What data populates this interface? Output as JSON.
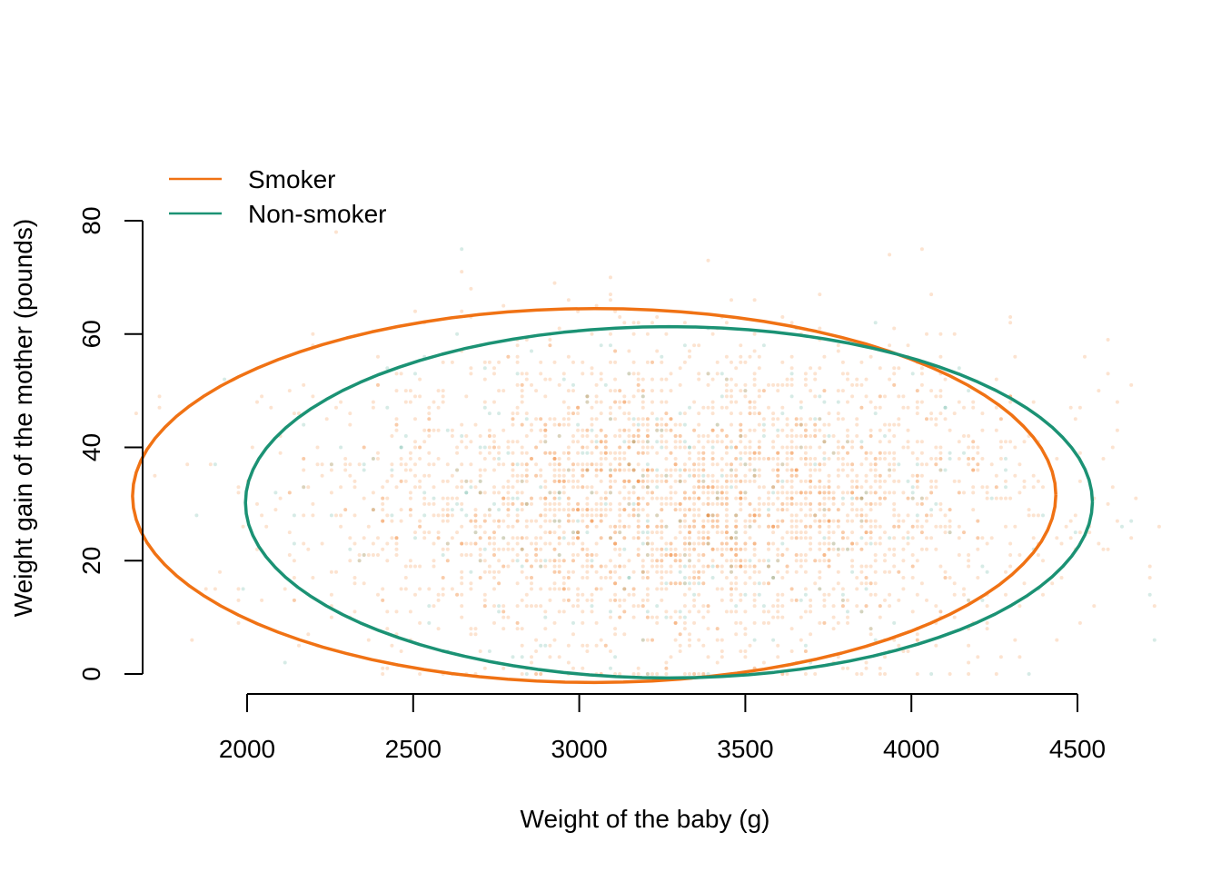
{
  "chart_data": {
    "type": "scatter",
    "title": "",
    "xlabel": "Weight of the baby (g)",
    "ylabel": "Weight gain of the mother (pounds)",
    "xlim": [
      1660,
      4750
    ],
    "ylim": [
      -3.5,
      93
    ],
    "x_ticks": [
      2000,
      2500,
      3000,
      3500,
      4000,
      4500
    ],
    "y_ticks": [
      0,
      20,
      40,
      60,
      80
    ],
    "x_tick_labels": [
      "2000",
      "2500",
      "3000",
      "3500",
      "4000",
      "4500"
    ],
    "y_tick_labels": [
      "0",
      "20",
      "40",
      "60",
      "80"
    ],
    "grid": false,
    "legend_position": "top-left",
    "series": [
      {
        "name": "Smoker",
        "color": "#F07214",
        "ellipse": {
          "center": [
            3045,
            31.5
          ],
          "semi_axes": [
            1390,
            33
          ],
          "rotation_deg_data": 0.004
        }
      },
      {
        "name": "Non-smoker",
        "color": "#1B9274",
        "ellipse": {
          "center": [
            3270,
            30.3
          ],
          "semi_axes": [
            1275,
            31
          ],
          "rotation_deg_data": 0.0028
        }
      }
    ],
    "points": {
      "description_type": "dense semi-transparent point cloud",
      "smoker_share": 0.9,
      "x_mean": 3300,
      "x_sd": 520,
      "y_mean": 30,
      "y_sd": 13.5
    }
  }
}
